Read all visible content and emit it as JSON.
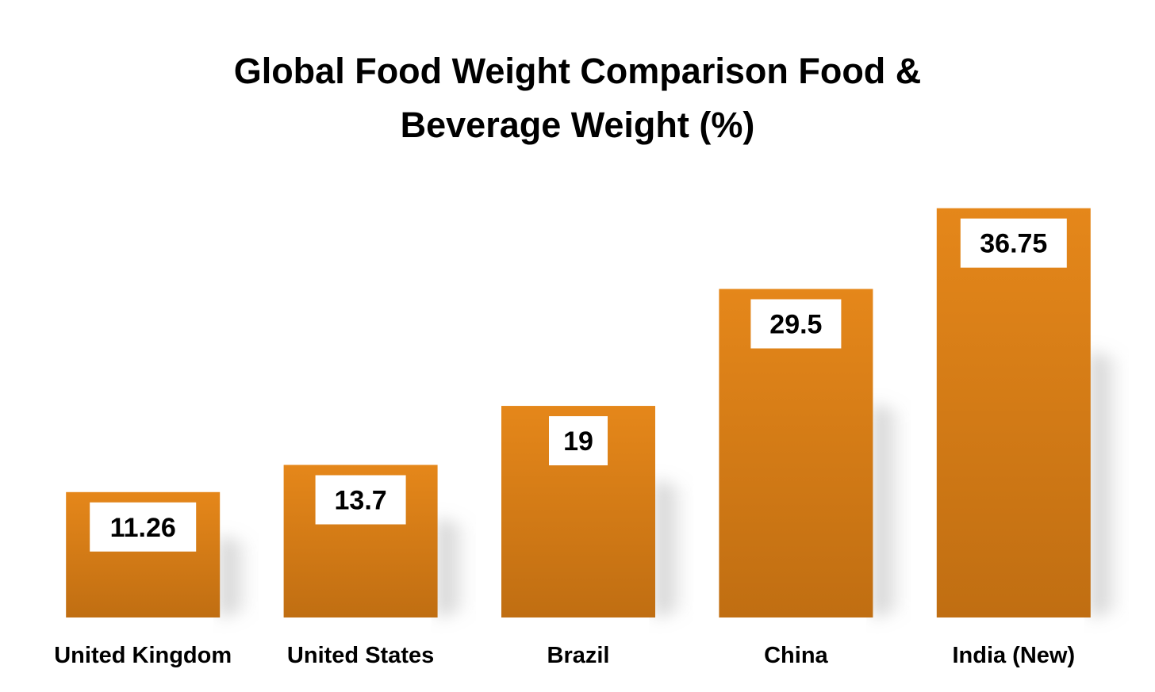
{
  "chart_data": {
    "type": "bar",
    "title_lines": [
      "Global Food Weight Comparison Food &",
      "Beverage Weight (%)"
    ],
    "categories": [
      "United Kingdom",
      "United States",
      "Brazil",
      "China",
      "India (New)"
    ],
    "values": [
      11.26,
      13.7,
      19,
      29.5,
      36.75
    ],
    "data_labels": [
      "11.26",
      "13.7",
      "19",
      "29.5",
      "36.75"
    ],
    "xlabel": "",
    "ylabel": "",
    "ylim": [
      0,
      40
    ],
    "grid": false,
    "legend": "none",
    "colors": {
      "bar_top": "#E5871A",
      "bar_bottom": "#C06E12",
      "label_box": "#FFFFFF",
      "text": "#000000"
    }
  }
}
